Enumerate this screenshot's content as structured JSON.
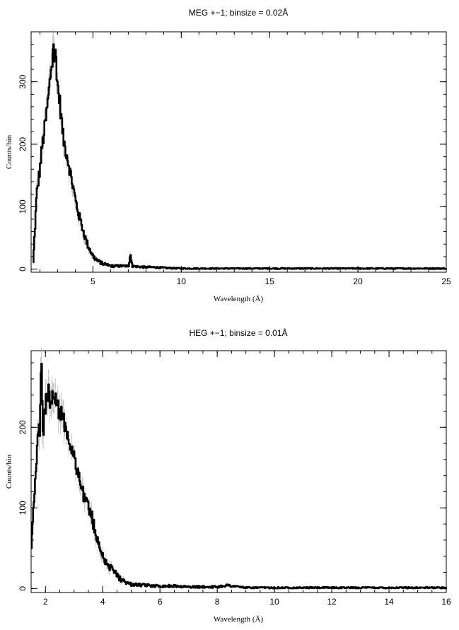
{
  "chart_data": [
    {
      "type": "line",
      "title": "MEG +−1; binsize = 0.02Å",
      "xlabel": "Wavelength (Å)",
      "ylabel": "Counts/bin",
      "xlim": [
        1.5,
        25
      ],
      "ylim": [
        -5,
        380
      ],
      "xticks": [
        5,
        10,
        15,
        20,
        25
      ],
      "yticks": [
        0,
        100,
        200,
        300
      ],
      "series": [
        {
          "x": [
            1.6,
            1.8,
            2.0,
            2.1,
            2.2,
            2.3,
            2.4,
            2.5,
            2.6,
            2.7,
            2.75,
            2.8,
            2.85,
            2.9,
            2.95,
            3.0,
            3.1,
            3.2,
            3.3,
            3.4,
            3.5,
            3.6,
            3.8,
            4.0,
            4.2,
            4.4,
            4.6,
            4.8,
            5.0,
            5.3,
            5.6,
            6.0,
            6.5,
            7.0,
            7.1,
            7.2,
            7.5,
            8.0,
            8.5,
            9.0,
            10.0,
            12.0,
            15.0,
            20.0,
            25.0
          ],
          "y": [
            10,
            120,
            165,
            195,
            215,
            235,
            260,
            285,
            320,
            335,
            370,
            325,
            355,
            335,
            310,
            290,
            270,
            240,
            210,
            195,
            185,
            170,
            140,
            110,
            85,
            65,
            45,
            32,
            20,
            12,
            8,
            5,
            5,
            5,
            25,
            5,
            4,
            3,
            3,
            2,
            1,
            1,
            1,
            1,
            1
          ]
        }
      ]
    },
    {
      "type": "line",
      "title": "HEG +−1; binsize = 0.01Å",
      "xlabel": "Wavelength (Å)",
      "ylabel": "Counts/bin",
      "xlim": [
        1.5,
        16
      ],
      "ylim": [
        -5,
        295
      ],
      "xticks": [
        2,
        4,
        6,
        8,
        10,
        12,
        14,
        16
      ],
      "yticks": [
        0,
        100,
        200
      ],
      "series": [
        {
          "x": [
            1.5,
            1.55,
            1.6,
            1.7,
            1.8,
            1.85,
            1.9,
            1.95,
            2.0,
            2.1,
            2.2,
            2.3,
            2.4,
            2.5,
            2.6,
            2.7,
            2.8,
            2.9,
            3.0,
            3.1,
            3.2,
            3.3,
            3.4,
            3.5,
            3.6,
            3.8,
            4.0,
            4.2,
            4.4,
            4.6,
            4.8,
            5.0,
            5.5,
            6.0,
            6.5,
            7.0,
            7.5,
            8.0,
            8.3,
            9.0,
            10.0,
            12.0,
            14.0,
            16.0
          ],
          "y": [
            45,
            90,
            120,
            175,
            200,
            285,
            190,
            215,
            230,
            240,
            235,
            245,
            230,
            215,
            210,
            205,
            185,
            175,
            160,
            150,
            130,
            120,
            110,
            100,
            90,
            60,
            40,
            28,
            20,
            12,
            8,
            5,
            4,
            3,
            3,
            2,
            2,
            2,
            4,
            1,
            1,
            1,
            1,
            1
          ]
        }
      ]
    }
  ]
}
